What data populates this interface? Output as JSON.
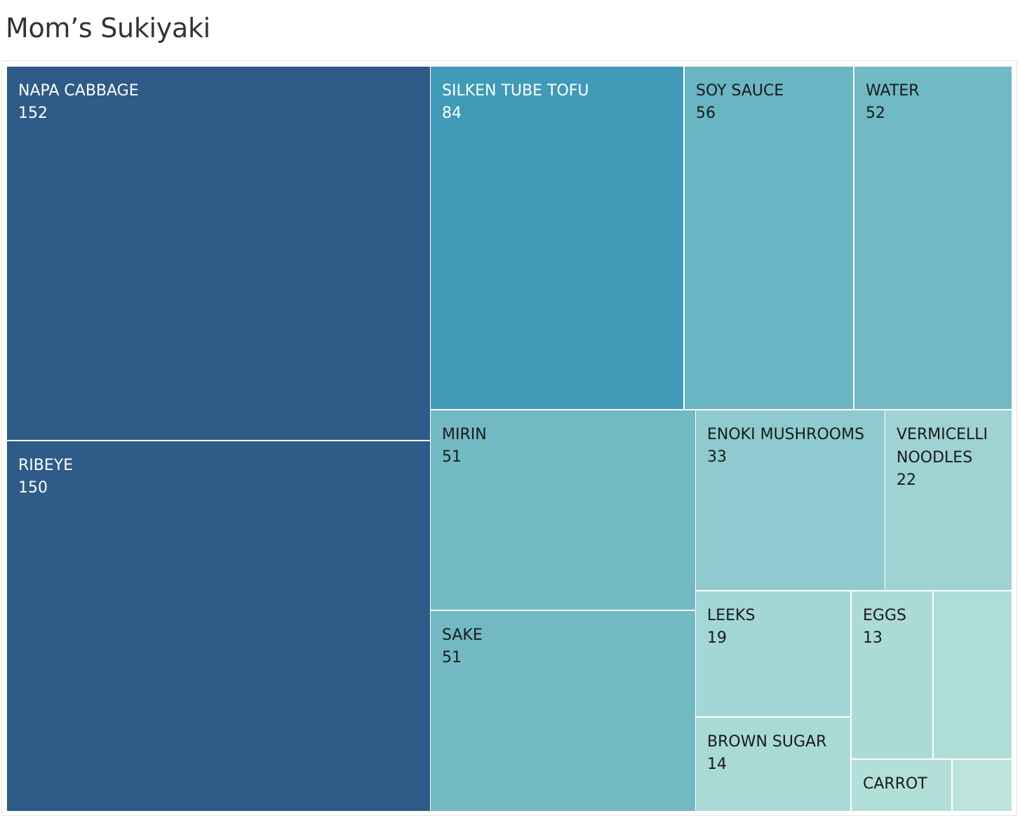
{
  "chart_data": {
    "type": "treemap",
    "title": "Mom’s Sukiyaki",
    "items": [
      {
        "label": "NAPA CABBAGE",
        "value": 152,
        "color": "#2e5b87",
        "text_color": "#ffffff"
      },
      {
        "label": "RIBEYE",
        "value": 150,
        "color": "#2e5b87",
        "text_color": "#ffffff"
      },
      {
        "label": "SILKEN TUBE TOFU",
        "value": 84,
        "color": "#3f9bb7",
        "text_color": "#ffffff"
      },
      {
        "label": "SOY SAUCE",
        "value": 56,
        "color": "#6ab5c3",
        "text_color": "#1a1a1a"
      },
      {
        "label": "WATER",
        "value": 52,
        "color": "#70b9c5",
        "text_color": "#1a1a1a"
      },
      {
        "label": "MIRIN",
        "value": 51,
        "color": "#73b9c4",
        "text_color": "#1a1a1a"
      },
      {
        "label": "SAKE",
        "value": 51,
        "color": "#73b9c4",
        "text_color": "#1a1a1a"
      },
      {
        "label": "ENOKI MUSHROOMS",
        "value": 33,
        "color": "#8ecacf",
        "text_color": "#1a1a1a"
      },
      {
        "label": "VERMICELLI NOODLES",
        "value": 22,
        "color": "#9ed2d3",
        "text_color": "#1a1a1a"
      },
      {
        "label": "LEEKS",
        "value": 19,
        "color": "#a3d6d6",
        "text_color": "#1a1a1a"
      },
      {
        "label": "BROWN SUGAR",
        "value": 14,
        "color": "#aadad6",
        "text_color": "#1a1a1a"
      },
      {
        "label": "EGGS",
        "value": 13,
        "color": "#acdad7",
        "text_color": "#1a1a1a"
      },
      {
        "label": "",
        "value": 12,
        "color": "#afddd8",
        "text_color": "#1a1a1a"
      },
      {
        "label": "CARROT",
        "value": 7,
        "color": "#b3dfd9",
        "text_color": "#1a1a1a"
      },
      {
        "label": "",
        "value": 4,
        "color": "#bde4dc",
        "text_color": "#1a1a1a"
      }
    ]
  }
}
